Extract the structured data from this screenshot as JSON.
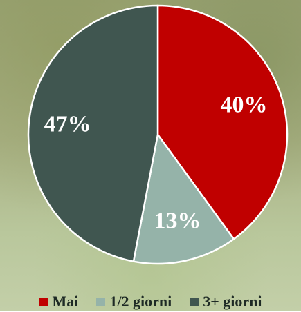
{
  "chart_data": {
    "type": "pie",
    "categories": [
      "Mai",
      "1/2 giorni",
      "3+ giorni"
    ],
    "values": [
      40,
      13,
      47
    ],
    "value_labels": [
      "40%",
      "13%",
      "47%"
    ],
    "colors": [
      "#c00000",
      "#95b3a9",
      "#405650"
    ],
    "legend": "bottom"
  }
}
